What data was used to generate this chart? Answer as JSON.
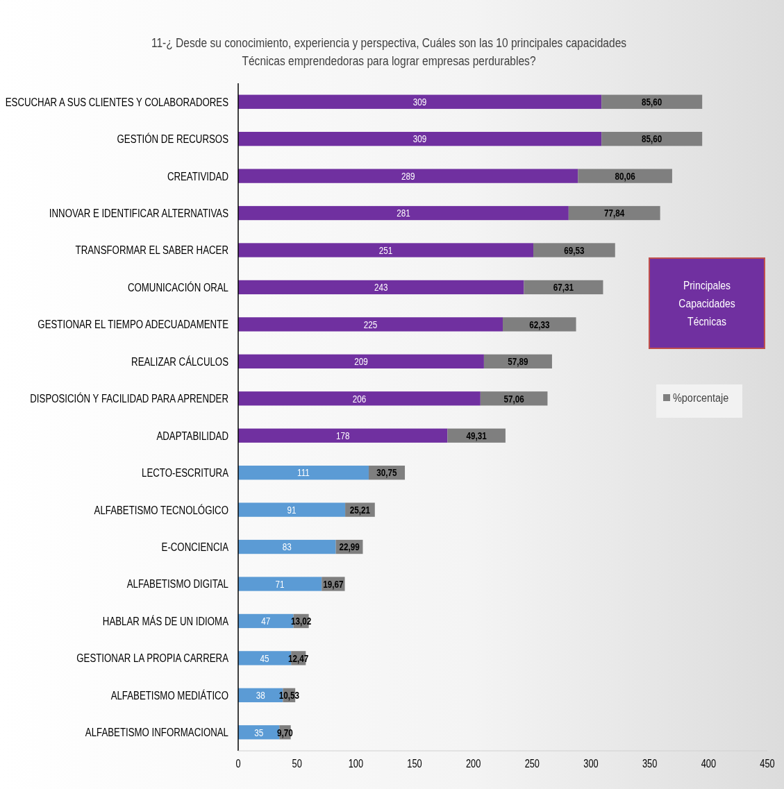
{
  "chart_data": {
    "type": "bar",
    "orientation": "horizontal",
    "stacked": true,
    "title": "11-¿ Desde su conocimiento, experiencia y perspectiva, Cuáles son las 10 principales capacidades Técnicas emprendedoras para lograr empresas perdurables?",
    "categories": [
      "ESCUCHAR A  SUS CLIENTES Y COLABORADORES",
      "GESTIÓN DE RECURSOS",
      "CREATIVIDAD",
      "INNOVAR E IDENTIFICAR ALTERNATIVAS",
      "TRANSFORMAR EL SABER HACER",
      "COMUNICACIÓN ORAL",
      "GESTIONAR EL TIEMPO ADECUADAMENTE",
      "REALIZAR CÁLCULOS",
      "DISPOSICIÓN Y FACILIDAD PARA APRENDER",
      "ADAPTABILIDAD",
      "LECTO-ESCRITURA",
      "ALFABETISMO TECNOLÓGICO",
      "E-CONCIENCIA",
      "ALFABETISMO DIGITAL",
      "HABLAR MÁS DE UN IDIOMA",
      "GESTIONAR LA PROPIA CARRERA",
      "ALFABETISMO MEDIÁTICO",
      "ALFABETISMO  INFORMACIONAL"
    ],
    "series": [
      {
        "colors": [
          "#7030a0",
          "#7030a0",
          "#7030a0",
          "#7030a0",
          "#7030a0",
          "#7030a0",
          "#7030a0",
          "#7030a0",
          "#7030a0",
          "#7030a0",
          "#5b9bd5",
          "#5b9bd5",
          "#5b9bd5",
          "#5b9bd5",
          "#5b9bd5",
          "#5b9bd5",
          "#5b9bd5",
          "#5b9bd5"
        ],
        "values": [
          309,
          309,
          289,
          281,
          251,
          243,
          225,
          209,
          206,
          178,
          111,
          91,
          83,
          71,
          47,
          45,
          38,
          35
        ],
        "value_labels": [
          "309",
          "309",
          "289",
          "281",
          "251",
          "243",
          "225",
          "209",
          "206",
          "178",
          "111",
          "91",
          "83",
          "71",
          "47",
          "45",
          "38",
          "35"
        ]
      },
      {
        "name": "%porcentaje",
        "color": "#7f7f7f",
        "values": [
          85.6,
          85.6,
          80.06,
          77.84,
          69.53,
          67.31,
          62.33,
          57.89,
          57.06,
          49.31,
          30.75,
          25.21,
          22.99,
          19.67,
          13.02,
          12.47,
          10.53,
          9.7
        ],
        "value_labels": [
          "85,60",
          "85,60",
          "80,06",
          "77,84",
          "69,53",
          "67,31",
          "62,33",
          "57,89",
          "57,06",
          "49,31",
          "30,75",
          "25,21",
          "22,99",
          "19,67",
          "13,02",
          "12,47",
          "10,53",
          "9,70"
        ]
      }
    ],
    "xlim": [
      0,
      450
    ],
    "xticks": [
      0,
      50,
      100,
      150,
      200,
      250,
      300,
      350,
      400,
      450
    ],
    "legend": "right",
    "annotations": [
      "Principales Capacidades Técnicas"
    ]
  }
}
